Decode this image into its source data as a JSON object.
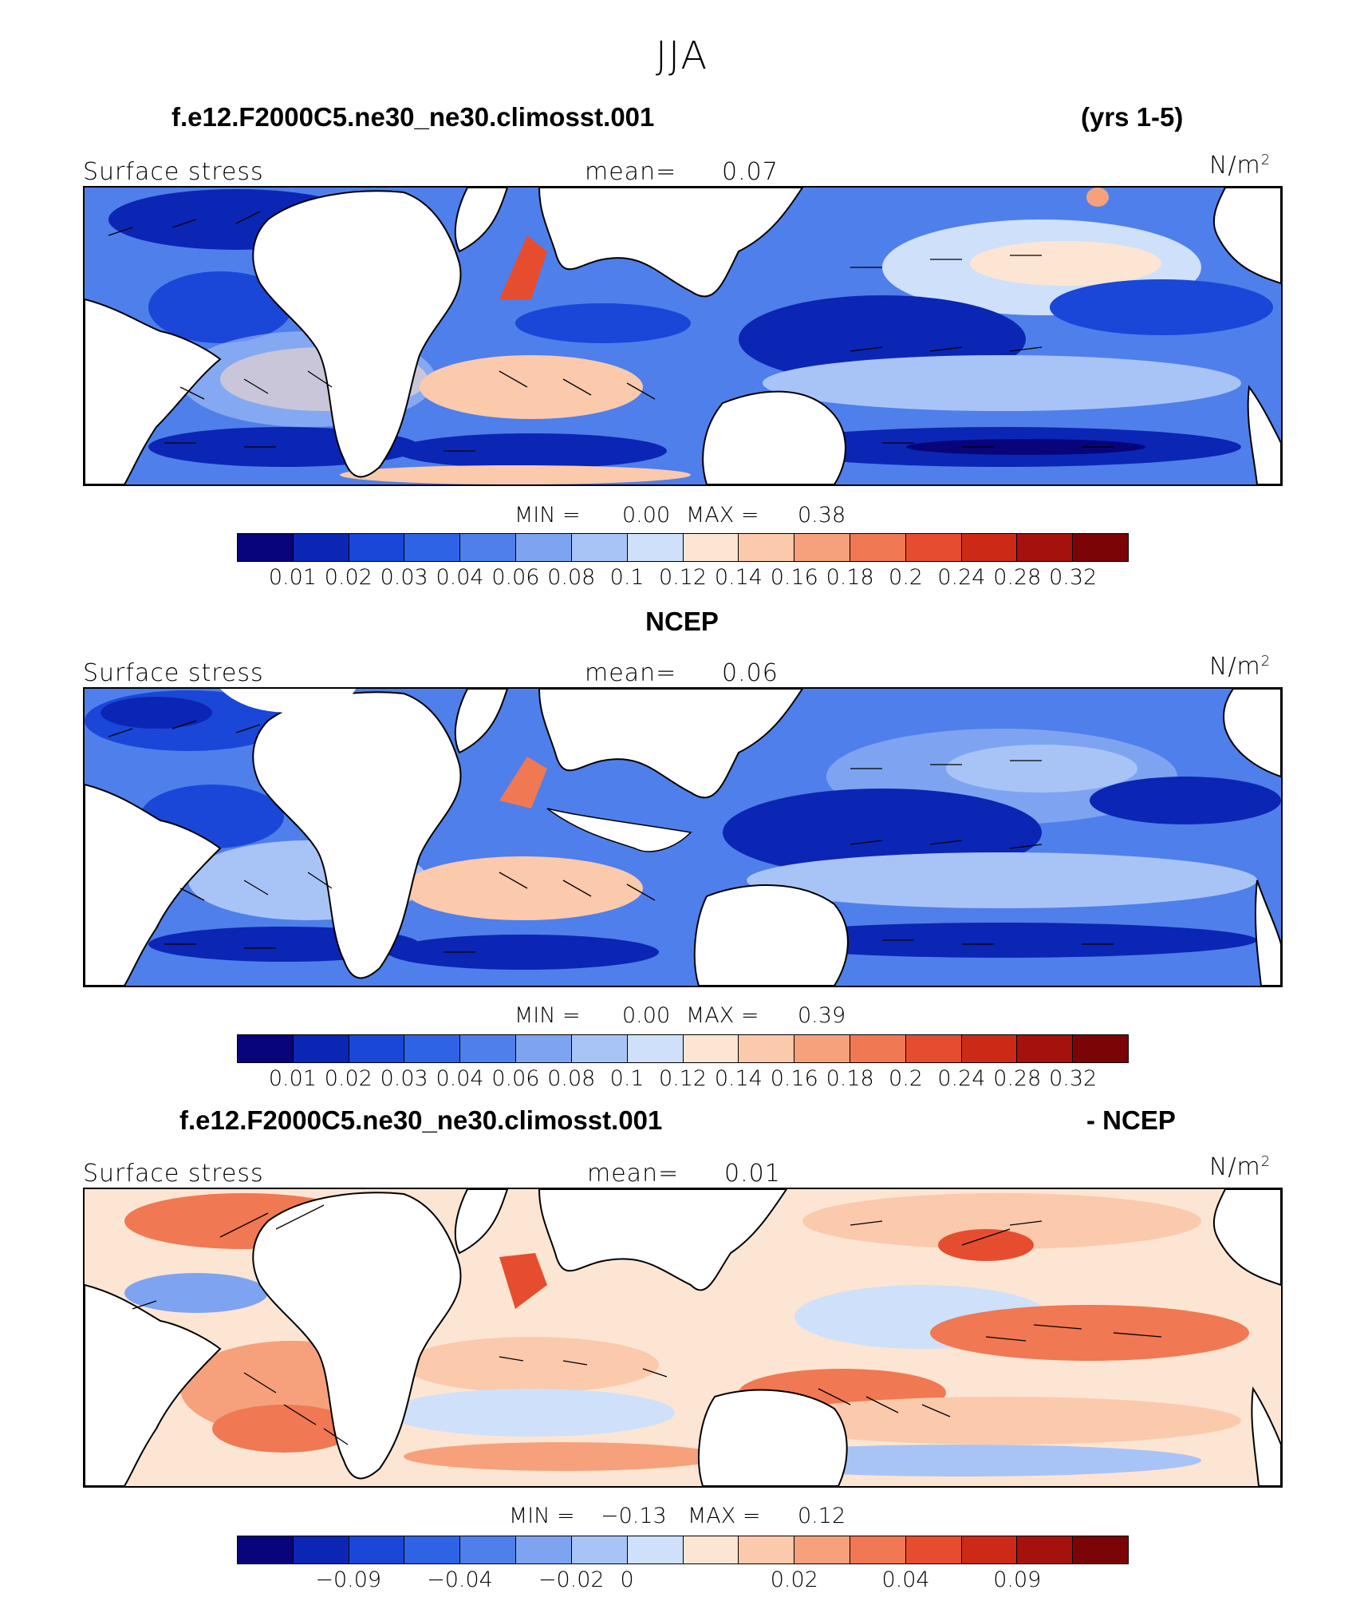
{
  "figure_title": "JJA",
  "colors": [
    "#08057a",
    "#0b26b5",
    "#1a47d8",
    "#2f63e6",
    "#4f7fea",
    "#7ea4f1",
    "#a8c4f7",
    "#cfe0fb",
    "#fde5d3",
    "#fbc9ac",
    "#f6a17c",
    "#f07852",
    "#e64d2f",
    "#cc2a17",
    "#a5110c",
    "#7a0406"
  ],
  "units": "N/m",
  "units_sup": "2",
  "panels": [
    {
      "title_left": "f.e12.F2000C5.ne30_ne30.climosst.001",
      "title_right": "(yrs 1-5)",
      "variable": "Surface stress",
      "mean_label": "mean=",
      "mean_value": "0.07",
      "min_label": "MIN =",
      "min_value": "0.00",
      "max_label": "MAX =",
      "max_value": "0.38",
      "colorbar_ticks": [
        "0.01",
        "0.02",
        "0.03",
        "0.04",
        "0.06",
        "0.08",
        "0.1",
        "0.12",
        "0.14",
        "0.16",
        "0.18",
        "0.2",
        "0.24",
        "0.28",
        "0.32"
      ]
    },
    {
      "title_left": "NCEP",
      "title_right": "",
      "variable": "Surface stress",
      "mean_label": "mean=",
      "mean_value": "0.06",
      "min_label": "MIN =",
      "min_value": "0.00",
      "max_label": "MAX =",
      "max_value": "0.39",
      "colorbar_ticks": [
        "0.01",
        "0.02",
        "0.03",
        "0.04",
        "0.06",
        "0.08",
        "0.1",
        "0.12",
        "0.14",
        "0.16",
        "0.18",
        "0.2",
        "0.24",
        "0.28",
        "0.32"
      ]
    },
    {
      "title_left": "f.e12.F2000C5.ne30_ne30.climosst.001",
      "title_right": "- NCEP",
      "variable": "Surface stress",
      "mean_label": "mean=",
      "mean_value": "0.01",
      "min_label": "MIN =",
      "min_value": "−0.13",
      "max_label": "MAX =",
      "max_value": "0.12",
      "colorbar_ticks": [
        "−0.09",
        "−0.04",
        "−0.02",
        "0",
        "0.02",
        "0.04",
        "0.09"
      ]
    }
  ]
}
